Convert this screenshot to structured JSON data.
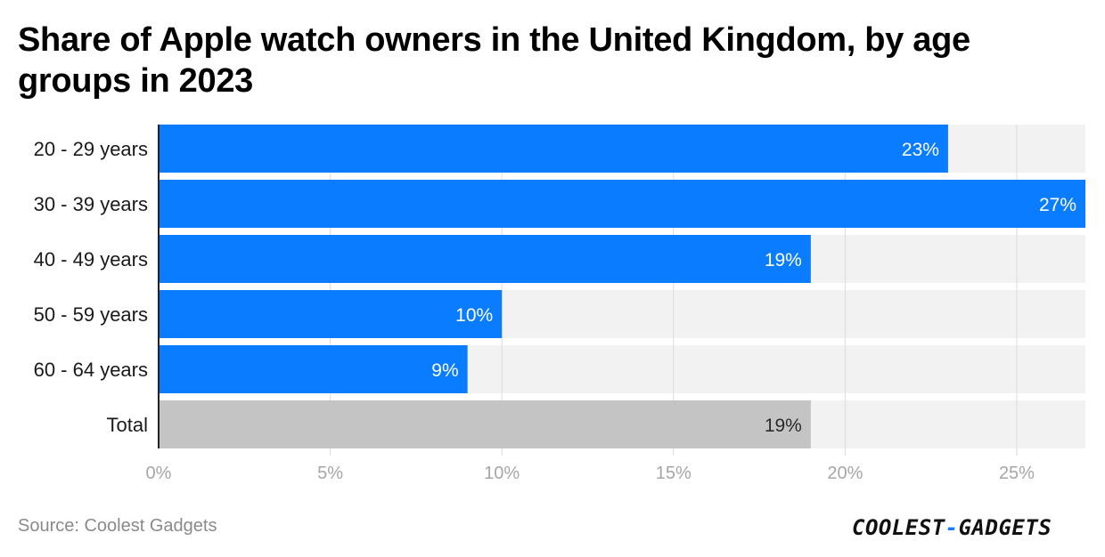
{
  "title": "Share of Apple watch owners in the United Kingdom, by age groups in 2023",
  "source": "Source: Coolest Gadgets",
  "logo": {
    "left": "COOLEST",
    "dash": "-",
    "right": "GADGETS"
  },
  "colors": {
    "bar": "#0a7cff",
    "total_bar": "#c4c4c4",
    "track": "#f2f2f2",
    "grid": "#dcdcdc",
    "tick_label": "#a6a6a6"
  },
  "chart_data": {
    "type": "bar",
    "orientation": "horizontal",
    "categories": [
      "20 - 29 years",
      "30 - 39 years",
      "40 - 49 years",
      "50 - 59 years",
      "60 - 64 years",
      "Total"
    ],
    "values": [
      23,
      27,
      19,
      10,
      9,
      19
    ],
    "data_labels": [
      "23%",
      "27%",
      "19%",
      "10%",
      "9%",
      "19%"
    ],
    "highlight": [
      "default",
      "default",
      "default",
      "default",
      "default",
      "total"
    ],
    "xlim": [
      0,
      27
    ],
    "xticks": [
      0,
      5,
      10,
      15,
      20,
      25
    ],
    "xtick_labels": [
      "0%",
      "5%",
      "10%",
      "15%",
      "20%",
      "25%"
    ],
    "grid": true,
    "legend": "none"
  }
}
